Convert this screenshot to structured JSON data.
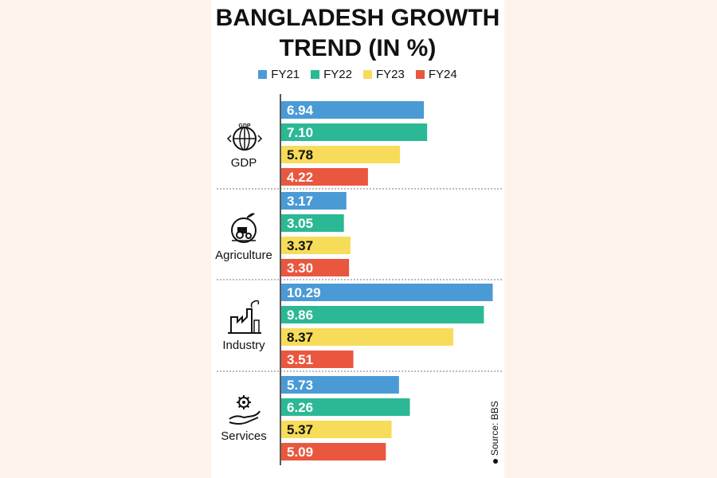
{
  "title_line1": "BANGLADESH GROWTH",
  "title_line2": "TREND (IN %)",
  "source": "Source: BBS",
  "colors": {
    "FY21": "#4a9ad6",
    "FY22": "#2bb894",
    "FY23": "#f7dc5a",
    "FY24": "#e9573f"
  },
  "legend": [
    "FY21",
    "FY22",
    "FY23",
    "FY24"
  ],
  "groups": [
    {
      "label": "GDP",
      "icon": "globe-gdp-icon"
    },
    {
      "label": "Agriculture",
      "icon": "tractor-icon"
    },
    {
      "label": "Industry",
      "icon": "factory-icon"
    },
    {
      "label": "Services",
      "icon": "hand-gear-icon"
    }
  ],
  "chart_data": {
    "type": "bar",
    "orientation": "horizontal",
    "title": "BANGLADESH GROWTH TREND (IN %)",
    "categories": [
      "GDP",
      "Agriculture",
      "Industry",
      "Services"
    ],
    "series": [
      {
        "name": "FY21",
        "values": [
          6.94,
          3.17,
          10.29,
          5.73
        ]
      },
      {
        "name": "FY22",
        "values": [
          7.1,
          3.05,
          9.86,
          6.26
        ]
      },
      {
        "name": "FY23",
        "values": [
          5.78,
          3.37,
          8.37,
          5.37
        ]
      },
      {
        "name": "FY24",
        "values": [
          4.22,
          3.3,
          3.51,
          5.09
        ]
      }
    ],
    "value_labels": [
      [
        "6.94",
        "3.17",
        "10.29",
        "5.73"
      ],
      [
        "7.10",
        "3.05",
        "9.86",
        "6.26"
      ],
      [
        "5.78",
        "3.37",
        "8.37",
        "5.37"
      ],
      [
        "4.22",
        "3.30",
        "3.51",
        "5.09"
      ]
    ],
    "legend_position": "top",
    "grid": false
  }
}
